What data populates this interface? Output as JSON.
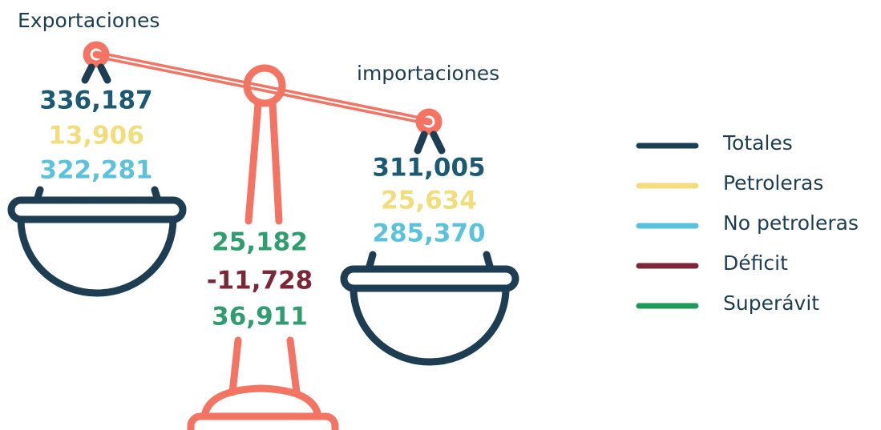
{
  "exports": {
    "label": "Exportaciones",
    "values": [
      "336,187",
      "13,906",
      "322,281"
    ]
  },
  "imports": {
    "label": "importaciones",
    "values": [
      "311,005",
      "25,634",
      "285,370"
    ]
  },
  "balance": {
    "values": [
      "25,182",
      "-11,728",
      "36,911"
    ]
  },
  "legend": [
    {
      "label": "Totales",
      "color": "#1c3d52"
    },
    {
      "label": "Petroleras",
      "color": "#f2dd7c"
    },
    {
      "label": "No petroleras",
      "color": "#5bc2dc"
    },
    {
      "label": "Déficit",
      "color": "#7d2638"
    },
    {
      "label": "Superávit",
      "color": "#1e9a58"
    }
  ]
}
